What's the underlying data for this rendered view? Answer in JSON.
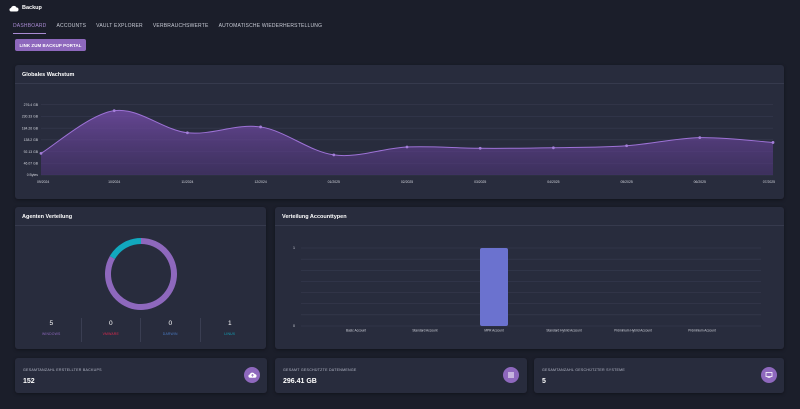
{
  "header": {
    "app_title": "Backup",
    "logo_icon": "cloud-icon"
  },
  "tabs": [
    {
      "label": "DASHBOARD",
      "active": true
    },
    {
      "label": "ACCOUNTS",
      "active": false
    },
    {
      "label": "VAULT EXPLORER",
      "active": false
    },
    {
      "label": "VERBRAUCHSWERTE",
      "active": false
    },
    {
      "label": "AUTOMATISCHE WIEDERHERSTELLUNG",
      "active": false
    }
  ],
  "portal_button": {
    "label": "LINK ZUM BACKUP PORTAL"
  },
  "colors": {
    "accent": "#8e68bd",
    "background": "#1b1e2a",
    "card": "#282c3d",
    "teal": "#11a8be",
    "bar": "#6b72cf"
  },
  "growth": {
    "title": "Globales Wachstum",
    "chart_data": {
      "type": "area",
      "x": [
        "09/2024",
        "10/2024",
        "11/2024",
        "12/2024",
        "01/2025",
        "02/2025",
        "03/2025",
        "04/2025",
        "05/2025",
        "06/2025",
        "07/2025"
      ],
      "y_tick_labels": [
        "0 Bytes",
        "46.07 GB",
        "92.13 GB",
        "138.2 GB",
        "184.26 GB",
        "230.33 GB",
        "276.4 GB"
      ],
      "ylim": [
        0,
        322.46
      ],
      "series": [
        {
          "values": [
            85,
            253,
            166,
            189,
            79,
            110,
            105,
            107,
            115,
            147,
            128
          ]
        }
      ]
    }
  },
  "agents": {
    "title": "Agenten Verteilung",
    "chart_data": {
      "type": "pie",
      "categories": [
        "WINDOWS",
        "VMWARE",
        "DARWIN",
        "LINUX"
      ],
      "values": [
        5,
        0,
        0,
        1
      ],
      "colors": [
        "#8e68bd",
        "#e0294f",
        "#2e5fa6",
        "#11a8be"
      ]
    },
    "stats": [
      {
        "value": "5",
        "label": "WINDOWS",
        "color": "#8e68bd"
      },
      {
        "value": "0",
        "label": "VMWARE",
        "color": "#e0294f"
      },
      {
        "value": "0",
        "label": "DARWIN",
        "color": "#4a7bc4"
      },
      {
        "value": "1",
        "label": "LINUX",
        "color": "#11a8be"
      }
    ]
  },
  "accounts": {
    "title": "Verteilung Accounttypen",
    "chart_data": {
      "type": "bar",
      "categories": [
        "Basic Account",
        "Standard Account",
        "MPR Account",
        "Standard Hybrid Account",
        "Préminium Hybrid Account",
        "Préminium Account"
      ],
      "values": [
        0,
        0,
        1,
        0,
        0,
        0
      ],
      "y_tick_labels": [
        "0",
        "1"
      ],
      "ylim": [
        0,
        1
      ]
    }
  },
  "stats": [
    {
      "label": "GESAMTANZAHL ERSTELLTER BACKUPS",
      "value": "152",
      "icon": "cloud-upload-icon"
    },
    {
      "label": "GESAMT GESCHÜTZTE DATENMENGE",
      "value": "296.41 GB",
      "icon": "list-icon"
    },
    {
      "label": "GESAMTANZAHL GESCHÜTZTER SYSTEME",
      "value": "5",
      "icon": "monitor-icon"
    }
  ]
}
